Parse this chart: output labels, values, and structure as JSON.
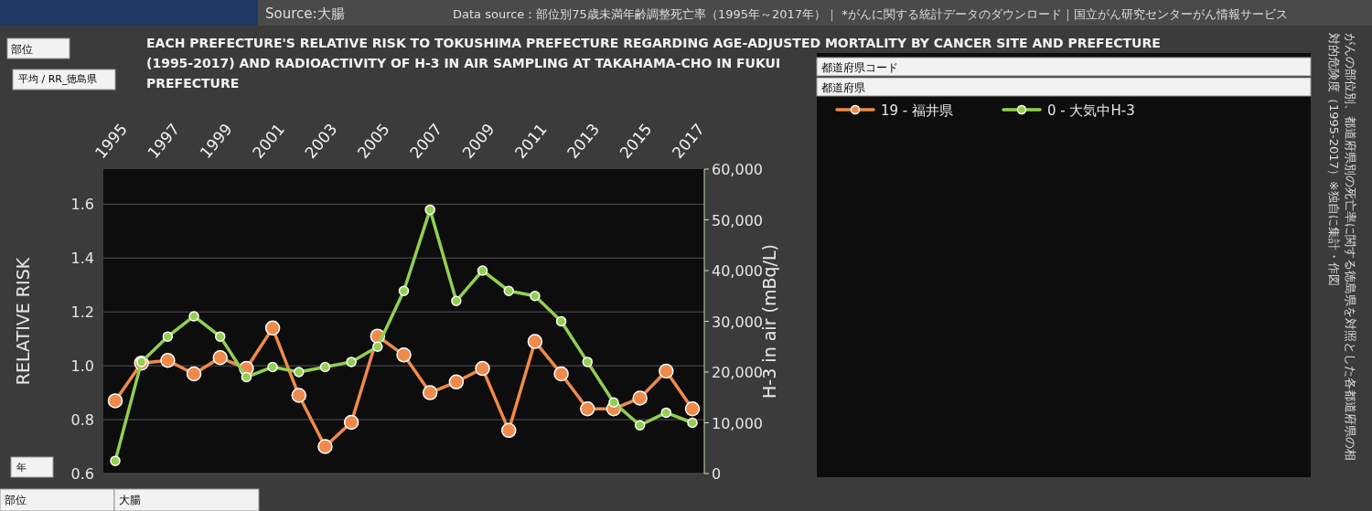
{
  "chart_data": {
    "type": "line",
    "title": "EACH PREFECTURE'S RELATIVE RISK TO TOKUSHIMA PREFECTURE  REGARDING AGE-ADJUSTED MORTALITY BY CANCER SITE AND PREFECTURE (1995-2017) AND RADIOACTIVITY OF H-3 IN AIR SAMPLING AT TAKAHAMA-CHO IN FUKUI PREFECTURE",
    "ylabel": "RELATIVE RISK",
    "y2label": "H-3 in air (mBq/L)",
    "categories": [
      "1995",
      null,
      "1997",
      null,
      "1999",
      null,
      "2001",
      null,
      "2003",
      null,
      "2005",
      null,
      "2007",
      null,
      "2009",
      null,
      "2011",
      null,
      "2013",
      null,
      "2015",
      null,
      "2017"
    ],
    "ylim": [
      0.6,
      1.73
    ],
    "yticks": [
      {
        "value": 0.6,
        "label": "0.6"
      },
      {
        "value": 0.8,
        "label": "0.8"
      },
      {
        "value": 1.0,
        "label": "1.0"
      },
      {
        "value": 1.2,
        "label": "1.2"
      },
      {
        "value": 1.4,
        "label": "1.4"
      },
      {
        "value": 1.6,
        "label": "1.6"
      }
    ],
    "y2lim": [
      0,
      60000
    ],
    "y2ticks": [
      {
        "value": 0,
        "label": "0"
      },
      {
        "value": 10000,
        "label": "10,000"
      },
      {
        "value": 20000,
        "label": "20,000"
      },
      {
        "value": 30000,
        "label": "30,000"
      },
      {
        "value": 40000,
        "label": "40,000"
      },
      {
        "value": 50000,
        "label": "50,000"
      },
      {
        "value": 60000,
        "label": "60,000"
      }
    ],
    "grid": "y",
    "legend": "right",
    "marker": "circle",
    "line_style": "solid",
    "annotations": [
      "Source:大腸",
      "Data source：部位別75歳未満年齢調整死亡率（1995年～2017年）｜ *がんに関する統計データのダウンロード｜国立がん研究センターがん情報サービス",
      "がんの部位別、都道府県別の死亡率に関する徳島県を対照とした各都道府県の相対的危険度（1995-2017）※独自に集計・作図",
      "部位",
      "平均 / RR_徳島県",
      "年",
      "都道府県コード",
      "都道府県",
      "部位",
      "大腸"
    ],
    "series": [
      {
        "name": "19 - 福井県",
        "color": "#f08a4b",
        "values": [
          0.87,
          1.01,
          1.02,
          0.97,
          1.03,
          0.99,
          1.14,
          0.89,
          0.7,
          0.79,
          1.11,
          1.04,
          0.9,
          0.94,
          0.99,
          0.76,
          1.09,
          0.97,
          0.84,
          0.84,
          0.88,
          0.98,
          0.84
        ]
      },
      {
        "name": "0 - 大気中H-3",
        "color": "#92d050",
        "axis": "y2",
        "values": [
          2500,
          22000,
          27000,
          31000,
          27000,
          19000,
          21000,
          20000,
          21000,
          22000,
          25000,
          36000,
          52000,
          34000,
          40000,
          36000,
          35000,
          30000,
          22000,
          14000,
          9500,
          12000,
          10000
        ]
      }
    ]
  }
}
